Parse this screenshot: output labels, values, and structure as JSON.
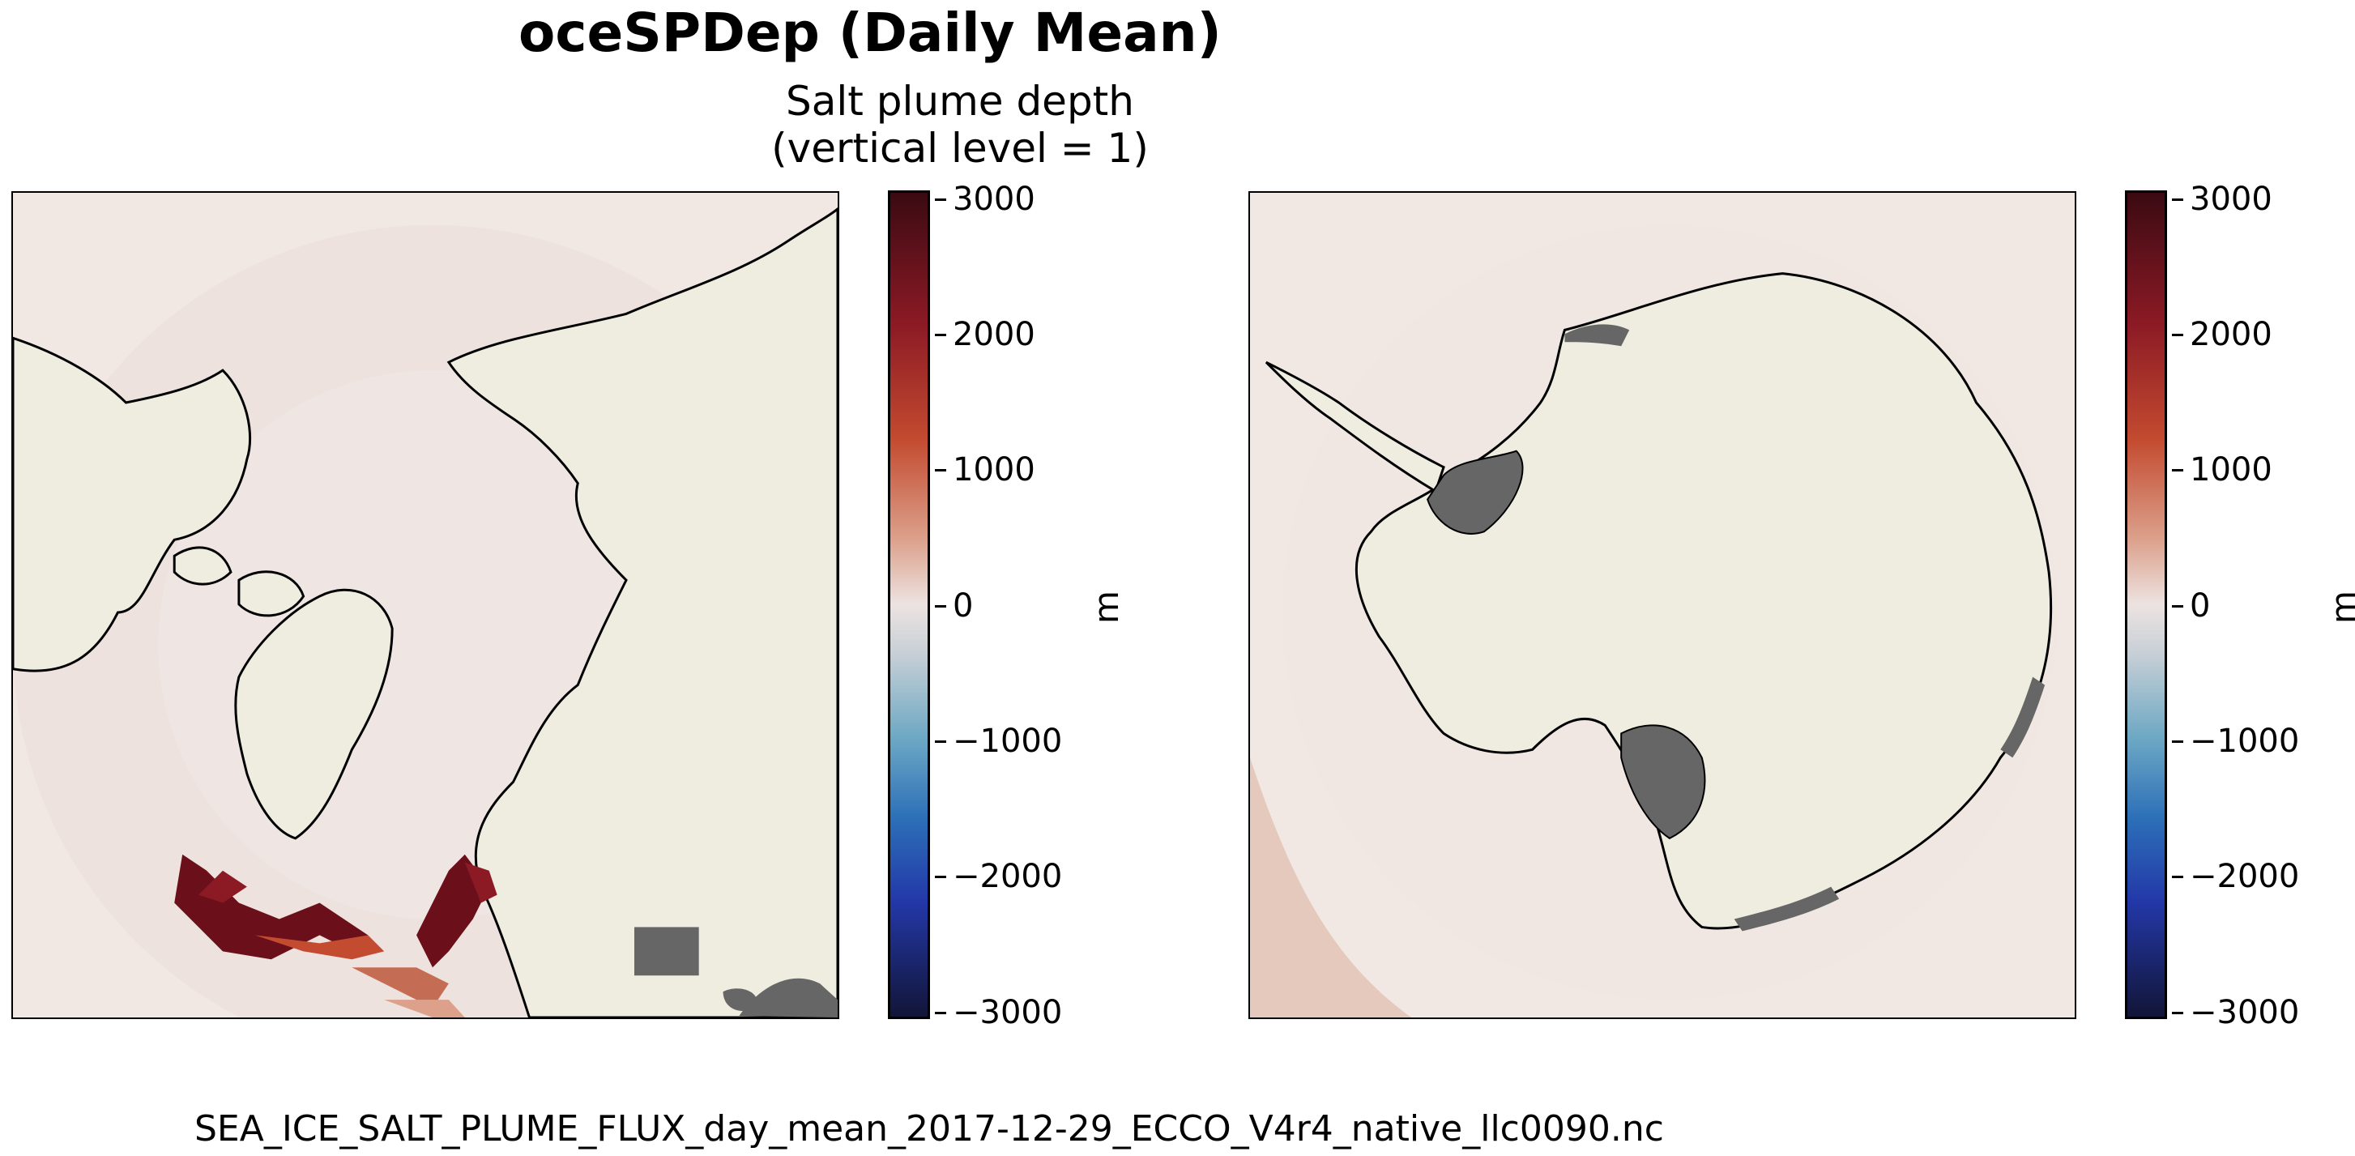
{
  "figure": {
    "title": "oceSPDep (Daily Mean)",
    "subtitle_line1": "Salt plume depth",
    "subtitle_line2": "(vertical level = 1)",
    "filename": "SEA_ICE_SALT_PLUME_FLUX_day_mean_2017-12-29_ECCO_V4r4_native_llc0090.nc"
  },
  "maps": [
    {
      "name": "Arctic (north polar stereographic)",
      "variable": "oceSPDep",
      "unit": "m"
    },
    {
      "name": "Antarctic (south polar stereographic)",
      "variable": "oceSPDep",
      "unit": "m"
    }
  ],
  "colorbar": {
    "unit": "m",
    "ticks": [
      "3000",
      "2000",
      "1000",
      "0",
      "−1000",
      "−2000",
      "−3000"
    ],
    "range": [
      -3000,
      3000
    ],
    "colormap": "diverging blue-white-red (balance)",
    "colors": {
      "max": "#3b0a12",
      "mid": "#ece3e1",
      "min": "#121538"
    }
  },
  "colors": {
    "land": "#efede0",
    "shelf_mask": "#666666",
    "ocean_low": "#f3eae5",
    "plume_high": "#6b0f1a"
  }
}
